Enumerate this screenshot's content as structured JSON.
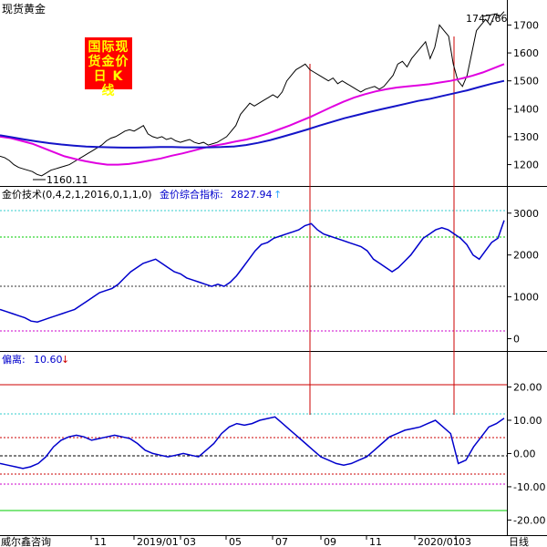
{
  "window_title": "现货黄金",
  "badge": {
    "line1": "国际现",
    "line2": "货金价",
    "line3": "日 K 线"
  },
  "price_panel": {
    "high_label": "1747.66",
    "low_label": "1160.11",
    "y_ticks": [
      "1700",
      "1600",
      "1500",
      "1400",
      "1300",
      "1200"
    ],
    "y_tick_values": [
      1700,
      1600,
      1500,
      1400,
      1300,
      1200
    ]
  },
  "indicator_panel": {
    "title": "金价技术(0,4,2,1,2016,0,1,1,0)",
    "index_label": "金价综合指标:",
    "index_value": "2827.94",
    "arrow": "↑",
    "y_ticks": [
      "3000",
      "2000",
      "1000",
      "0"
    ],
    "y_tick_values": [
      3000,
      2000,
      1000,
      0
    ]
  },
  "deviation_panel": {
    "label": "偏离:",
    "value": "10.60",
    "arrow": "↓",
    "y_ticks": [
      "20.00",
      "10.00",
      "0.00",
      "-10.00",
      "-20.00"
    ],
    "y_tick_values": [
      20,
      10,
      0,
      -10,
      -20
    ]
  },
  "x_axis": {
    "left_label": "威尔鑫咨询",
    "labels": [
      "11",
      "2019/01",
      "03",
      "05",
      "07",
      "09",
      "11",
      "2020/01",
      "03"
    ],
    "period_label": "日线"
  },
  "colors": {
    "price_line": "#000000",
    "ma_magenta": "#e000e0",
    "ma_blue": "#1414c8",
    "indicator_line": "#0000cc",
    "grid_red": "#cc0000",
    "cyan": "#33cccc",
    "green": "#00cc00"
  },
  "chart_data": {
    "type": "line",
    "x_labels": [
      "11",
      "2019/01",
      "03",
      "05",
      "07",
      "09",
      "11",
      "2020/01",
      "03"
    ],
    "series": [
      {
        "panel": "price",
        "ylim": [
          1130,
          1770
        ],
        "values": [
          1230,
          1225,
          1215,
          1200,
          1190,
          1185,
          1180,
          1175,
          1165,
          1160,
          1170,
          1180,
          1185,
          1190,
          1195,
          1200,
          1210,
          1220,
          1230,
          1240,
          1250,
          1260,
          1270,
          1285,
          1295,
          1300,
          1310,
          1320,
          1325,
          1320,
          1330,
          1340,
          1310,
          1300,
          1295,
          1300,
          1290,
          1295,
          1285,
          1280,
          1285,
          1290,
          1280,
          1275,
          1280,
          1270,
          1275,
          1280,
          1290,
          1300,
          1320,
          1340,
          1380,
          1400,
          1420,
          1410,
          1420,
          1430,
          1440,
          1450,
          1440,
          1460,
          1500,
          1520,
          1540,
          1550,
          1560,
          1540,
          1530,
          1520,
          1510,
          1500,
          1510,
          1490,
          1500,
          1490,
          1480,
          1470,
          1460,
          1470,
          1475,
          1480,
          1470,
          1480,
          1500,
          1520,
          1560,
          1570,
          1550,
          1580,
          1600,
          1620,
          1640,
          1580,
          1620,
          1700,
          1680,
          1660,
          1560,
          1500,
          1480,
          1520,
          1600,
          1680,
          1700,
          1720,
          1700,
          1740,
          1730,
          1748
        ]
      },
      {
        "panel": "price",
        "name_hidden": "ma_magenta",
        "ylim": [
          1130,
          1770
        ],
        "values": [
          1300,
          1295,
          1285,
          1275,
          1260,
          1245,
          1230,
          1220,
          1212,
          1205,
          1200,
          1200,
          1202,
          1208,
          1215,
          1222,
          1232,
          1240,
          1250,
          1260,
          1268,
          1275,
          1283,
          1290,
          1300,
          1312,
          1326,
          1340,
          1356,
          1372,
          1390,
          1408,
          1425,
          1440,
          1452,
          1462,
          1470,
          1476,
          1480,
          1484,
          1488,
          1494,
          1500,
          1508,
          1518,
          1530,
          1545,
          1560
        ]
      },
      {
        "panel": "price",
        "name_hidden": "ma_blue",
        "ylim": [
          1130,
          1770
        ],
        "values": [
          1305,
          1298,
          1290,
          1283,
          1277,
          1272,
          1268,
          1265,
          1263,
          1262,
          1261,
          1261,
          1262,
          1263,
          1263,
          1262,
          1262,
          1262,
          1263,
          1265,
          1270,
          1278,
          1288,
          1300,
          1313,
          1326,
          1340,
          1353,
          1366,
          1377,
          1388,
          1398,
          1408,
          1418,
          1428,
          1436,
          1446,
          1456,
          1466,
          1478,
          1490,
          1500
        ]
      },
      {
        "panel": "indicator",
        "ylim": [
          -250,
          3300
        ],
        "values": [
          700,
          650,
          600,
          550,
          500,
          420,
          400,
          450,
          500,
          550,
          600,
          650,
          700,
          800,
          900,
          1000,
          1100,
          1150,
          1200,
          1300,
          1450,
          1600,
          1700,
          1800,
          1850,
          1900,
          1800,
          1700,
          1600,
          1550,
          1450,
          1400,
          1350,
          1300,
          1250,
          1300,
          1250,
          1350,
          1500,
          1700,
          1900,
          2100,
          2250,
          2300,
          2400,
          2450,
          2500,
          2550,
          2600,
          2700,
          2750,
          2600,
          2500,
          2450,
          2400,
          2350,
          2300,
          2250,
          2200,
          2100,
          1900,
          1800,
          1700,
          1600,
          1700,
          1850,
          2000,
          2200,
          2400,
          2500,
          2600,
          2650,
          2600,
          2500,
          2400,
          2250,
          2000,
          1900,
          2100,
          2300,
          2400,
          2827.94
        ]
      },
      {
        "panel": "deviation",
        "ylim": [
          -24,
          30
        ],
        "values": [
          -3,
          -3.5,
          -4,
          -4.5,
          -4,
          -3,
          -1,
          2,
          4,
          5,
          5.5,
          5,
          4,
          4.5,
          5,
          5.5,
          5,
          4.5,
          3,
          1,
          0,
          -0.5,
          -1,
          -0.5,
          0,
          -0.5,
          -1,
          1,
          3,
          6,
          8,
          9,
          8.5,
          9,
          10,
          10.5,
          11,
          9,
          7,
          5,
          3,
          1,
          -1,
          -2,
          -3,
          -3.5,
          -3,
          -2,
          -1,
          1,
          3,
          5,
          6,
          7,
          7.5,
          8,
          9,
          10,
          8,
          6,
          -3,
          -2,
          2,
          5,
          8,
          9,
          10.6
        ]
      }
    ]
  }
}
